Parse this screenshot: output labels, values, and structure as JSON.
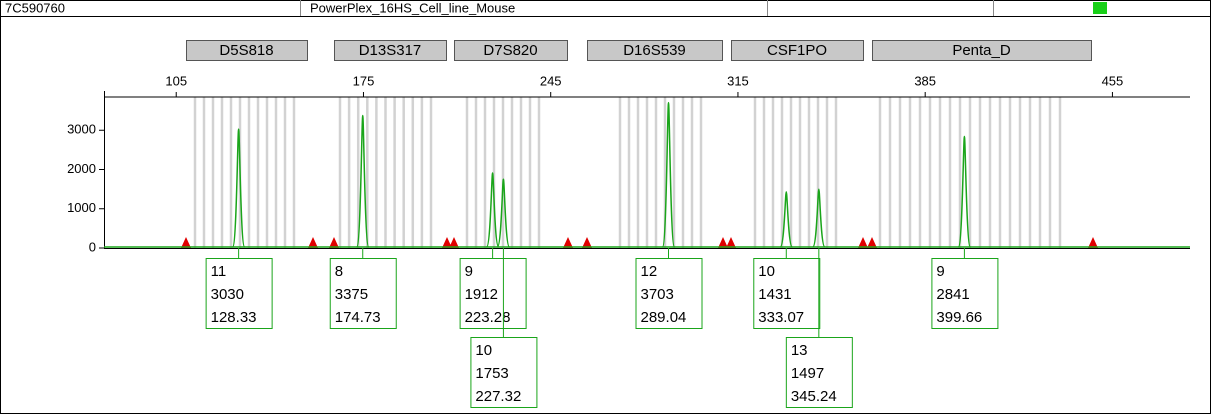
{
  "header": {
    "sample": "7C590760",
    "panel": "PowerPlex_16HS_Cell_line_Mouse"
  },
  "chart_data": {
    "type": "electropherogram",
    "loci": [
      "D5S818",
      "D13S317",
      "D7S820",
      "D16S539",
      "CSF1PO",
      "Penta_D"
    ],
    "xlim": [
      78,
      484
    ],
    "xticks": [
      105,
      175,
      245,
      315,
      385,
      455
    ],
    "ylim": [
      0,
      4000
    ],
    "yticks": [
      0,
      1000,
      2000,
      3000
    ],
    "color": "#1aa51a",
    "peaks": [
      {
        "allele": "11",
        "height": 3030,
        "size": 128.33
      },
      {
        "allele": "8",
        "height": 3375,
        "size": 174.73
      },
      {
        "allele": "9",
        "height": 1912,
        "size": 223.28
      },
      {
        "allele": "10",
        "height": 1753,
        "size": 227.32
      },
      {
        "allele": "12",
        "height": 3703,
        "size": 289.04
      },
      {
        "allele": "10",
        "height": 1431,
        "size": 333.07
      },
      {
        "allele": "13",
        "height": 1497,
        "size": 345.24
      },
      {
        "allele": "9",
        "height": 2841,
        "size": 399.66
      }
    ]
  }
}
